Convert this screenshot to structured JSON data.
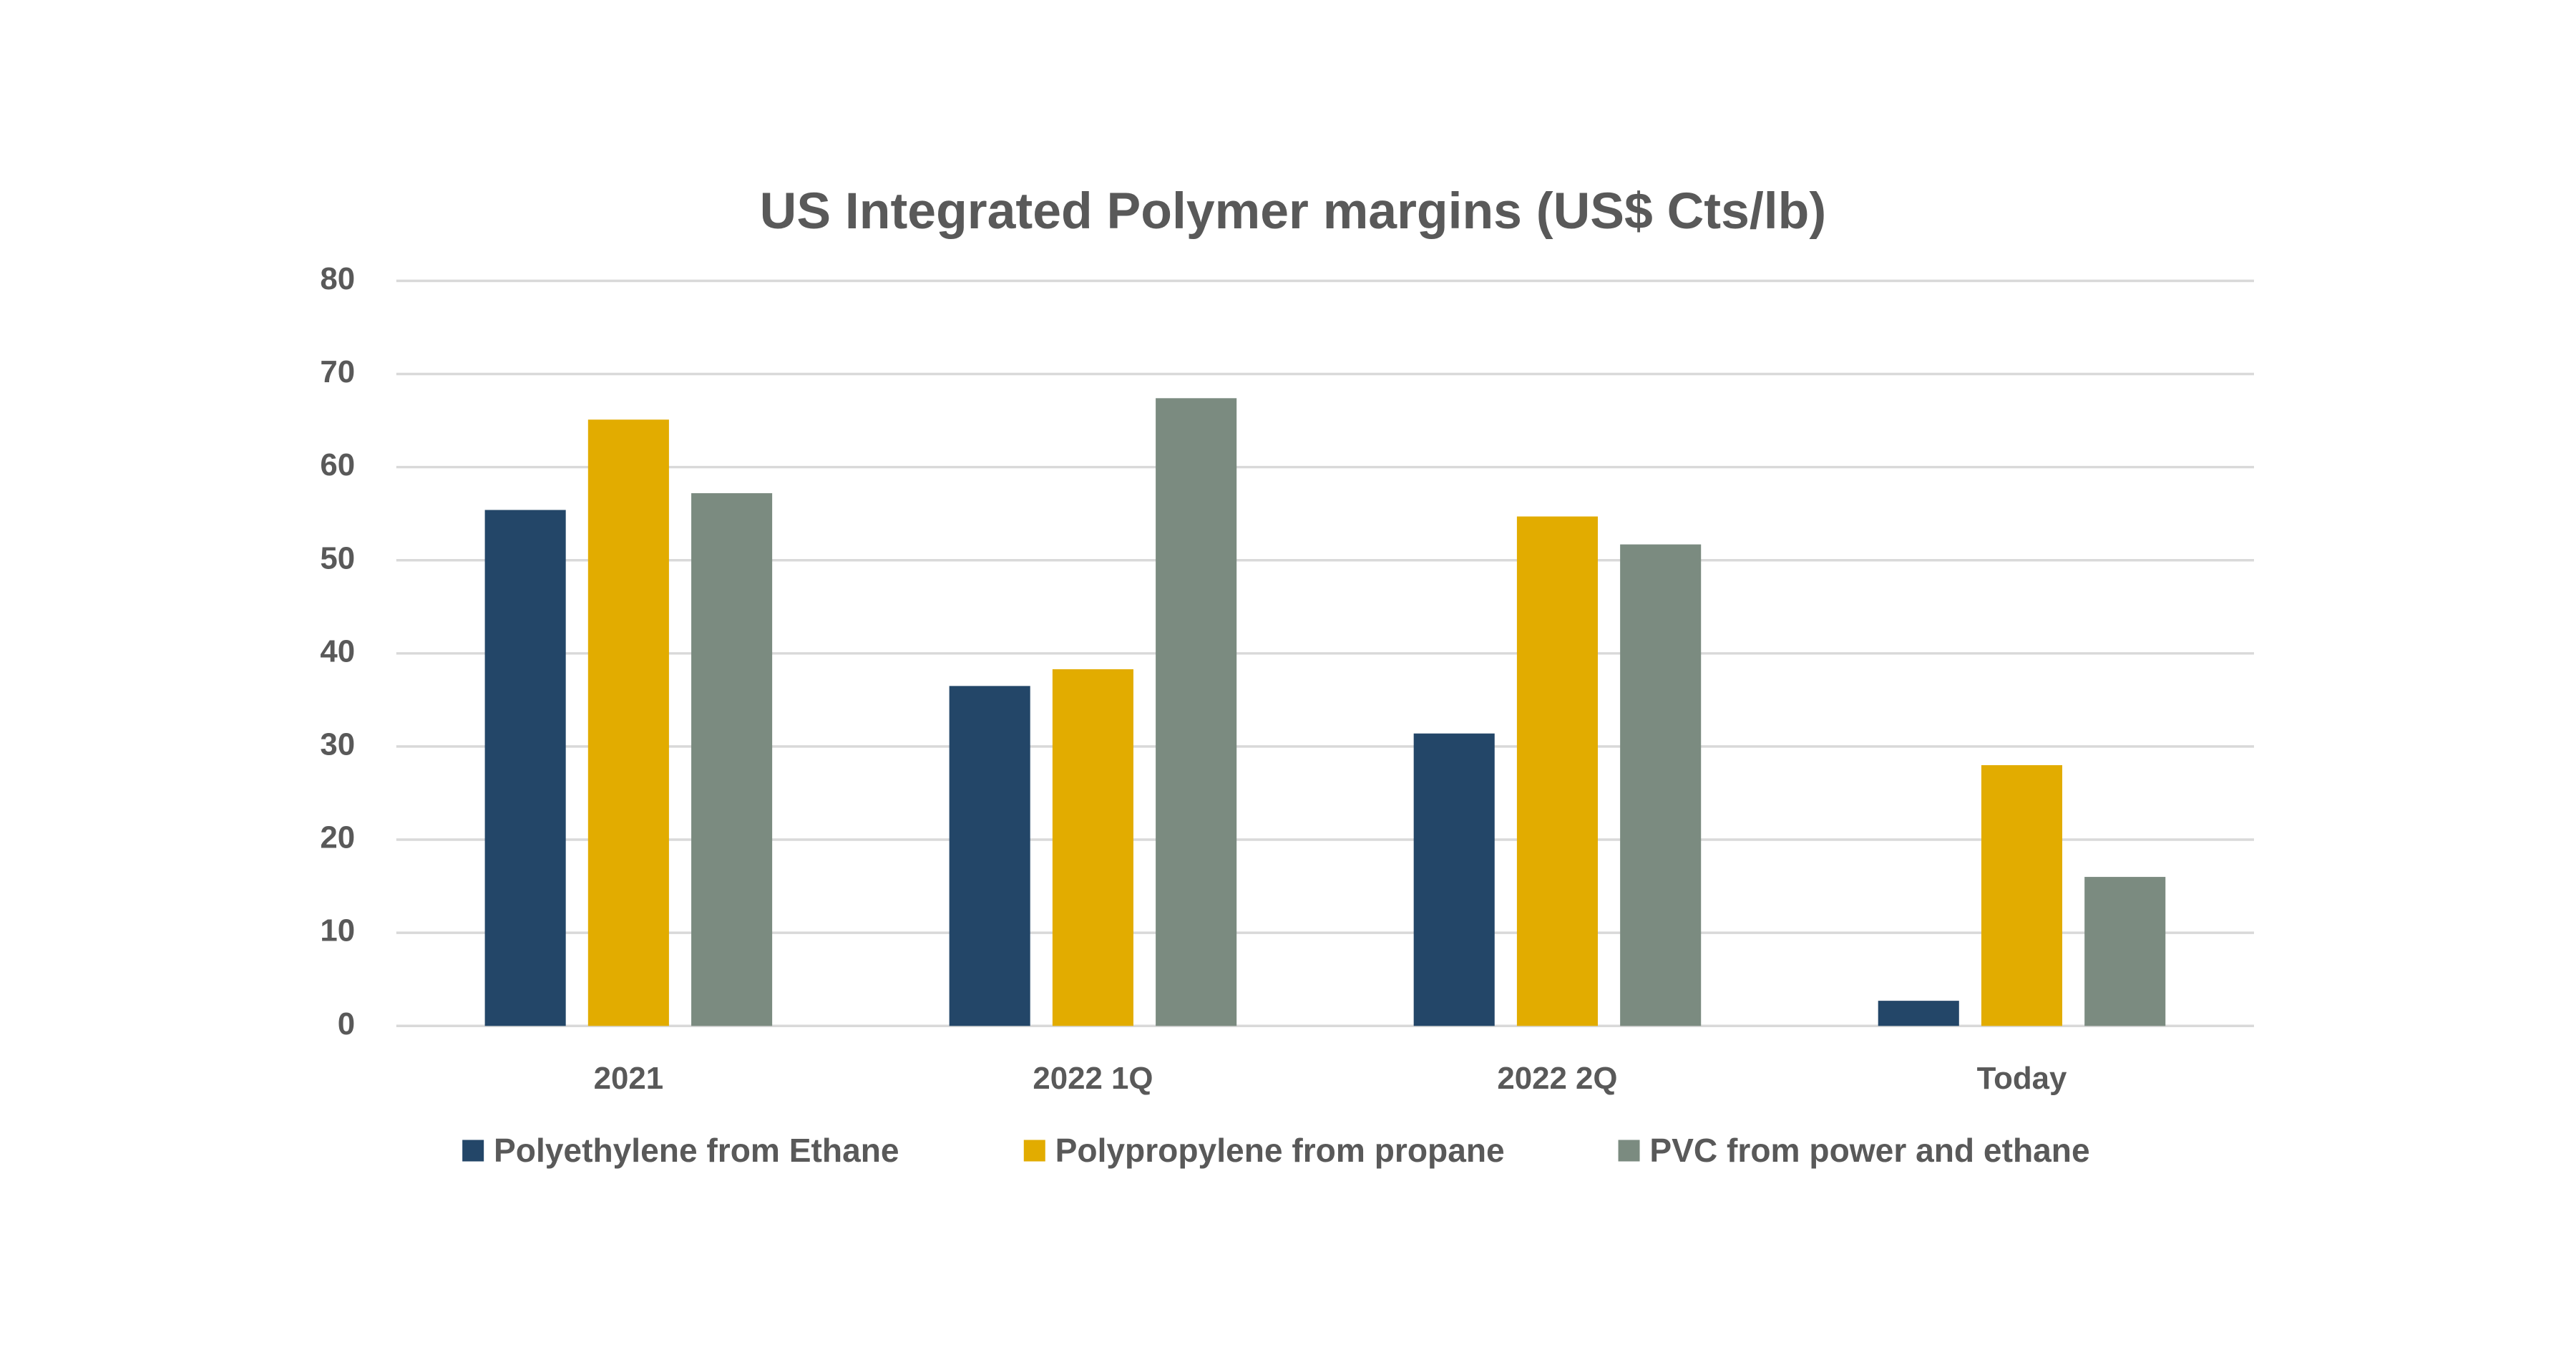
{
  "chart_data": {
    "type": "bar",
    "title": "US Integrated Polymer margins (US$ Cts/lb)",
    "categories": [
      "2021",
      "2022 1Q",
      "2022 2Q",
      "Today"
    ],
    "series": [
      {
        "name": "Polyethylene from Ethane",
        "color": "#234668",
        "values": [
          55.4,
          36.5,
          31.4,
          2.7
        ]
      },
      {
        "name": "Polypropylene from propane",
        "color": "#e2ac00",
        "values": [
          65.1,
          38.3,
          54.7,
          28.0
        ]
      },
      {
        "name": "PVC from power and ethane",
        "color": "#7b8b80",
        "values": [
          57.2,
          67.4,
          51.7,
          16.0
        ]
      }
    ],
    "ylim": [
      0,
      80
    ],
    "yticks": [
      0,
      10,
      20,
      30,
      40,
      50,
      60,
      70,
      80
    ],
    "grid": true,
    "legend": "bottom"
  }
}
